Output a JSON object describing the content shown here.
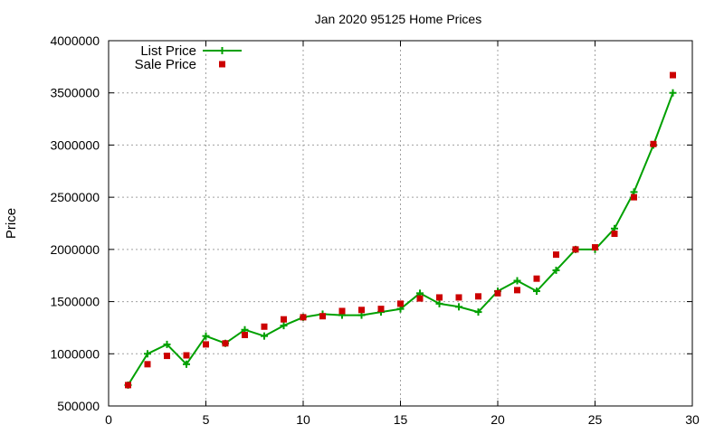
{
  "chart_data": {
    "type": "line",
    "title": "Jan 2020 95125 Home Prices",
    "xlabel": "",
    "ylabel": "Price",
    "xlim": [
      0,
      30
    ],
    "ylim": [
      500000,
      4000000
    ],
    "x_ticks": [
      0,
      5,
      10,
      15,
      20,
      25,
      30
    ],
    "y_ticks": [
      500000,
      1000000,
      1500000,
      2000000,
      2500000,
      3000000,
      3500000,
      4000000
    ],
    "grid": true,
    "legend_position": "top-left",
    "series": [
      {
        "name": "List Price",
        "kind": "line-points",
        "marker": "plus",
        "color": "#00a000",
        "x": [
          1,
          2,
          3,
          4,
          5,
          6,
          7,
          8,
          9,
          10,
          11,
          12,
          13,
          14,
          15,
          16,
          17,
          18,
          19,
          20,
          21,
          22,
          23,
          24,
          25,
          26,
          27,
          28,
          29
        ],
        "y": [
          700000,
          1000000,
          1090000,
          900000,
          1170000,
          1100000,
          1230000,
          1170000,
          1270000,
          1350000,
          1380000,
          1370000,
          1370000,
          1400000,
          1430000,
          1580000,
          1480000,
          1450000,
          1400000,
          1600000,
          1700000,
          1600000,
          1800000,
          2000000,
          2000000,
          2200000,
          2550000,
          3000000,
          3500000
        ]
      },
      {
        "name": "Sale Price",
        "kind": "points",
        "marker": "square",
        "color": "#cc0000",
        "x": [
          1,
          2,
          3,
          4,
          5,
          6,
          7,
          8,
          9,
          10,
          11,
          12,
          13,
          14,
          15,
          16,
          17,
          18,
          19,
          20,
          21,
          22,
          23,
          24,
          25,
          26,
          27,
          28,
          29
        ],
        "y": [
          700000,
          900000,
          980000,
          985000,
          1090000,
          1100000,
          1180000,
          1260000,
          1330000,
          1350000,
          1360000,
          1410000,
          1420000,
          1430000,
          1480000,
          1530000,
          1540000,
          1540000,
          1550000,
          1580000,
          1610000,
          1720000,
          1950000,
          2000000,
          2020000,
          2150000,
          2500000,
          3010000,
          3670000
        ]
      }
    ]
  }
}
